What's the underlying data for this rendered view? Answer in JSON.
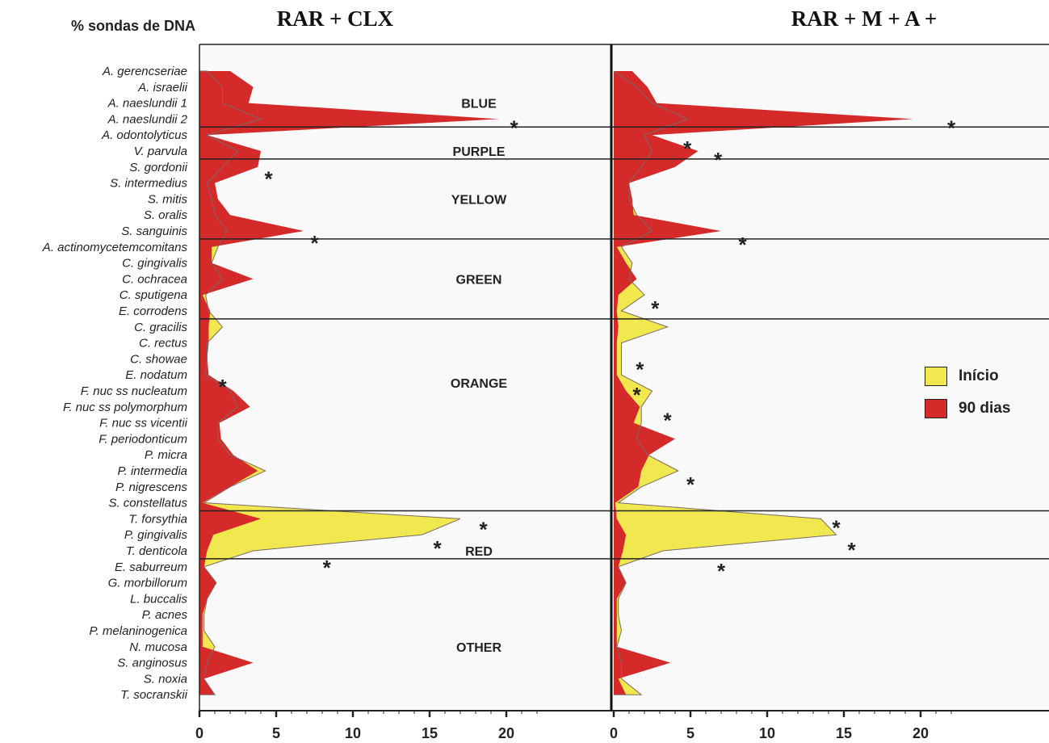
{
  "chart_data": {
    "type": "area",
    "ylabel": "% sondas de DNA",
    "species": [
      "A. gerencseriae",
      "A. israelii",
      "A. naeslundii 1",
      "A. naeslundii 2",
      "A. odontolyticus",
      "V. parvula",
      "S. gordonii",
      "S. intermedius",
      "S. mitis",
      "S. oralis",
      "S. sanguinis",
      "A. actinomycetemcomitans",
      "C. gingivalis",
      "C. ochracea",
      "C. sputigena",
      "E. corrodens",
      "C. gracilis",
      "C. rectus",
      "C. showae",
      "E. nodatum",
      "F. nuc ss nucleatum",
      "F. nuc ss polymorphum",
      "F. nuc ss vicentii",
      "F. periodonticum",
      "P. micra",
      "P. intermedia",
      "P. nigrescens",
      "S. constellatus",
      "T. forsythia",
      "P. gingivalis",
      "T. denticola",
      "E. saburreum",
      "G. morbillorum",
      "L. buccalis",
      "P. acnes",
      "P. melaninogenica",
      "N. mucosa",
      "S. anginosus",
      "S. noxia",
      "T. socranskii"
    ],
    "complexes": [
      {
        "label": "BLUE",
        "start": 0,
        "end": 3,
        "labelRow": 2
      },
      {
        "label": "PURPLE",
        "start": 4,
        "end": 5,
        "labelRow": 5
      },
      {
        "label": "YELLOW",
        "start": 6,
        "end": 10,
        "labelRow": 8
      },
      {
        "label": "GREEN",
        "start": 11,
        "end": 15,
        "labelRow": 13
      },
      {
        "label": "ORANGE",
        "start": 16,
        "end": 27,
        "labelRow": 19.5
      },
      {
        "label": "RED",
        "start": 28,
        "end": 30,
        "labelRow": 30
      },
      {
        "label": "OTHER",
        "start": 31,
        "end": 39,
        "labelRow": 36
      }
    ],
    "legend": {
      "inicio": "Início",
      "dias90": "90 dias",
      "inicio_color": "#f0e84e",
      "dias90_color": "#d42a2a",
      "position": "right"
    },
    "xticks": [
      0,
      5,
      10,
      15,
      20
    ],
    "xlim": [
      0,
      25
    ],
    "panels": [
      {
        "title": "RAR + CLX",
        "series": [
          {
            "name": "Início",
            "values": [
              0.5,
              1.5,
              1.5,
              4,
              0.5,
              2.5,
              1.5,
              0.5,
              0.8,
              1,
              1.8,
              1.2,
              0.8,
              1.5,
              0.4,
              0.6,
              1.5,
              0.5,
              0.5,
              0.4,
              2,
              2.5,
              1.2,
              1.2,
              2,
              4.3,
              2,
              0.3,
              17,
              14.5,
              3.5,
              0.3,
              1.1,
              0.5,
              0.3,
              0.3,
              1,
              0.5,
              0.3,
              1
            ]
          },
          {
            "name": "90 dias",
            "values": [
              2,
              3.5,
              3.2,
              19.5,
              0.5,
              4,
              3.8,
              1,
              1.2,
              2,
              6.8,
              0.8,
              0.8,
              3.5,
              0.2,
              0.7,
              0.6,
              0.6,
              0.5,
              0.6,
              2.2,
              3.3,
              1.3,
              1.4,
              2.2,
              3.8,
              2,
              0.2,
              4,
              0.9,
              0.5,
              0.3,
              1.1,
              0.5,
              0.2,
              0.2,
              0.2,
              3.5,
              0.3,
              1
            ]
          }
        ],
        "asterisks": [
          {
            "row": 3.3,
            "value": 20.5
          },
          {
            "row": 6.5,
            "value": 4.5
          },
          {
            "row": 10.5,
            "value": 7.5
          },
          {
            "row": 19.5,
            "value": 1.5
          },
          {
            "row": 28.4,
            "value": 18.5
          },
          {
            "row": 29.6,
            "value": 15.5
          },
          {
            "row": 30.8,
            "value": 8.3
          }
        ]
      },
      {
        "title": "RAR + M + A +",
        "series": [
          {
            "name": "Início",
            "values": [
              0,
              1.5,
              2.5,
              4.8,
              2,
              2.5,
              1.8,
              1,
              1,
              1.5,
              2.5,
              0.5,
              1.2,
              1,
              2,
              0.5,
              3.5,
              0.5,
              0.5,
              0.5,
              2.5,
              1.8,
              1.8,
              1.5,
              2.2,
              4.2,
              1.8,
              0.3,
              13.5,
              14.5,
              3.2,
              0.3,
              0.8,
              0.3,
              0.3,
              0.5,
              0.2,
              0.5,
              0.5,
              1.8
            ]
          },
          {
            "name": "90 dias",
            "values": [
              1.2,
              2.2,
              2.8,
              19.5,
              2.5,
              5.5,
              4,
              1,
              1.2,
              1.3,
              7,
              0.2,
              0.8,
              1.5,
              0.3,
              0.2,
              0.3,
              0.2,
              0.2,
              0.2,
              0.8,
              1.7,
              1.3,
              4,
              2.3,
              1.8,
              1.6,
              0.1,
              0.2,
              0.8,
              0.6,
              0.3,
              0.8,
              0.2,
              0.2,
              0.2,
              0.2,
              3.7,
              0.3,
              0.8
            ]
          }
        ],
        "asterisks": [
          {
            "row": 3.3,
            "value": 22
          },
          {
            "row": 4.6,
            "value": 4.8
          },
          {
            "row": 5.3,
            "value": 6.8
          },
          {
            "row": 10.6,
            "value": 8.4
          },
          {
            "row": 14.6,
            "value": 2.7
          },
          {
            "row": 18.4,
            "value": 1.7
          },
          {
            "row": 20,
            "value": 1.5
          },
          {
            "row": 21.6,
            "value": 3.5
          },
          {
            "row": 25.6,
            "value": 5
          },
          {
            "row": 28.3,
            "value": 14.5
          },
          {
            "row": 29.7,
            "value": 15.5
          },
          {
            "row": 31,
            "value": 7
          }
        ]
      }
    ]
  }
}
